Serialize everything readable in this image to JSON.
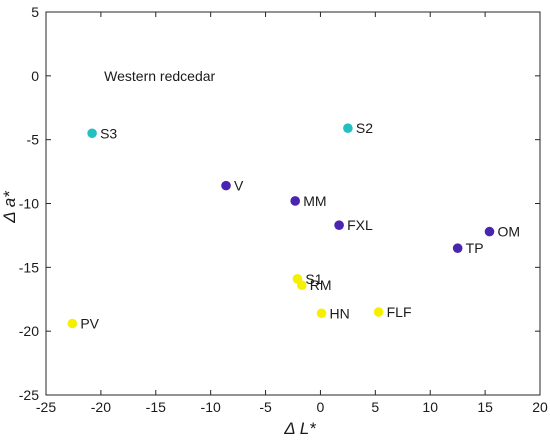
{
  "chart_data": {
    "type": "scatter",
    "title": "",
    "annotation": "Western redcedar",
    "xlabel": "Δ L*",
    "ylabel": "Δ a*",
    "xlim": [
      -25,
      20
    ],
    "ylim": [
      -25,
      5
    ],
    "xticks": [
      -25,
      -20,
      -15,
      -10,
      -5,
      0,
      5,
      10,
      15,
      20
    ],
    "yticks": [
      -25,
      -20,
      -15,
      -10,
      -5,
      0,
      5
    ],
    "grid": false,
    "colors": {
      "cyan": "#22c0c0",
      "purple": "#4a26b0",
      "yellow": "#f4f000"
    },
    "points": [
      {
        "label": "S3",
        "x": -20.8,
        "y": -4.5,
        "color": "cyan"
      },
      {
        "label": "S2",
        "x": 2.5,
        "y": -4.1,
        "color": "cyan"
      },
      {
        "label": "V",
        "x": -8.6,
        "y": -8.6,
        "color": "purple"
      },
      {
        "label": "MM",
        "x": -2.3,
        "y": -9.8,
        "color": "purple"
      },
      {
        "label": "FXL",
        "x": 1.7,
        "y": -11.7,
        "color": "purple"
      },
      {
        "label": "OM",
        "x": 15.4,
        "y": -12.2,
        "color": "purple"
      },
      {
        "label": "TP",
        "x": 12.5,
        "y": -13.5,
        "color": "purple"
      },
      {
        "label": "S1",
        "x": -2.1,
        "y": -15.9,
        "color": "yellow"
      },
      {
        "label": "RM",
        "x": -1.7,
        "y": -16.4,
        "color": "yellow"
      },
      {
        "label": "PV",
        "x": -22.6,
        "y": -19.4,
        "color": "yellow"
      },
      {
        "label": "HN",
        "x": 0.1,
        "y": -18.6,
        "color": "yellow"
      },
      {
        "label": "FLF",
        "x": 5.3,
        "y": -18.5,
        "color": "yellow"
      }
    ]
  }
}
